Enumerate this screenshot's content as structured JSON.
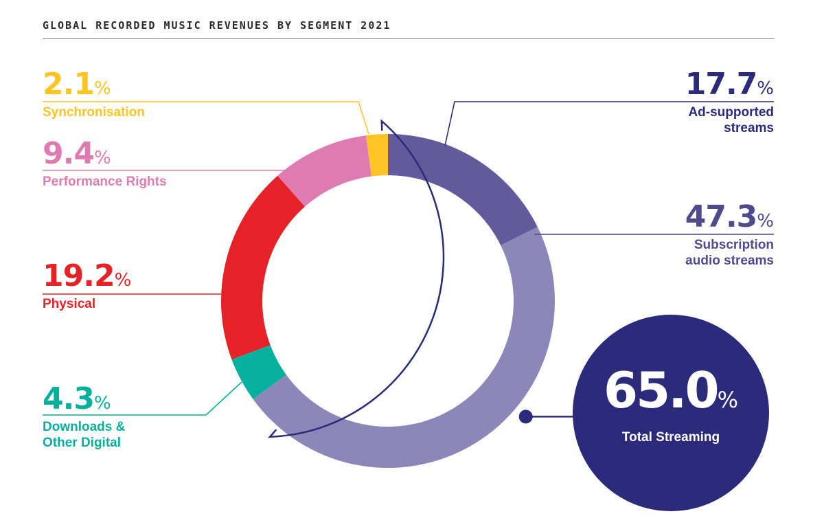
{
  "title": "GLOBAL RECORDED MUSIC REVENUES BY SEGMENT 2021",
  "percent_sign": "%",
  "chart_data": {
    "type": "pie",
    "title": "GLOBAL RECORDED MUSIC REVENUES BY SEGMENT 2021",
    "style": "donut",
    "unit": "%",
    "slices": [
      {
        "label": "Ad-supported streams",
        "value": 17.7,
        "color": "#635a9b"
      },
      {
        "label": "Subscription audio streams",
        "value": 47.3,
        "color": "#8c86b9"
      },
      {
        "label": "Downloads & Other Digital",
        "value": 4.3,
        "color": "#07b09c"
      },
      {
        "label": "Physical",
        "value": 19.2,
        "color": "#e42228"
      },
      {
        "label": "Performance Rights",
        "value": 9.4,
        "color": "#de7bb0"
      },
      {
        "label": "Synchronisation",
        "value": 2.1,
        "color": "#fec424"
      }
    ],
    "total": {
      "label": "Total Streaming",
      "value": "65.0",
      "color": "#2b2a7b"
    },
    "labels": {
      "ad": {
        "value": "17.7",
        "line1": "Ad-supported",
        "line2": "streams",
        "color": "#2b2a7b"
      },
      "sub": {
        "value": "47.3",
        "line1": "Subscription",
        "line2": "audio streams",
        "color": "#4f4a8c"
      },
      "dl": {
        "value": "4.3",
        "line1": "Downloads &",
        "line2": "Other Digital",
        "color": "#07b09c"
      },
      "phys": {
        "value": "19.2",
        "line1": "Physical",
        "color": "#e42228"
      },
      "perf": {
        "value": "9.4",
        "line1": "Performance Rights",
        "color": "#de7bb0"
      },
      "sync": {
        "value": "2.1",
        "line1": "Synchronisation",
        "color": "#fec424"
      }
    }
  }
}
